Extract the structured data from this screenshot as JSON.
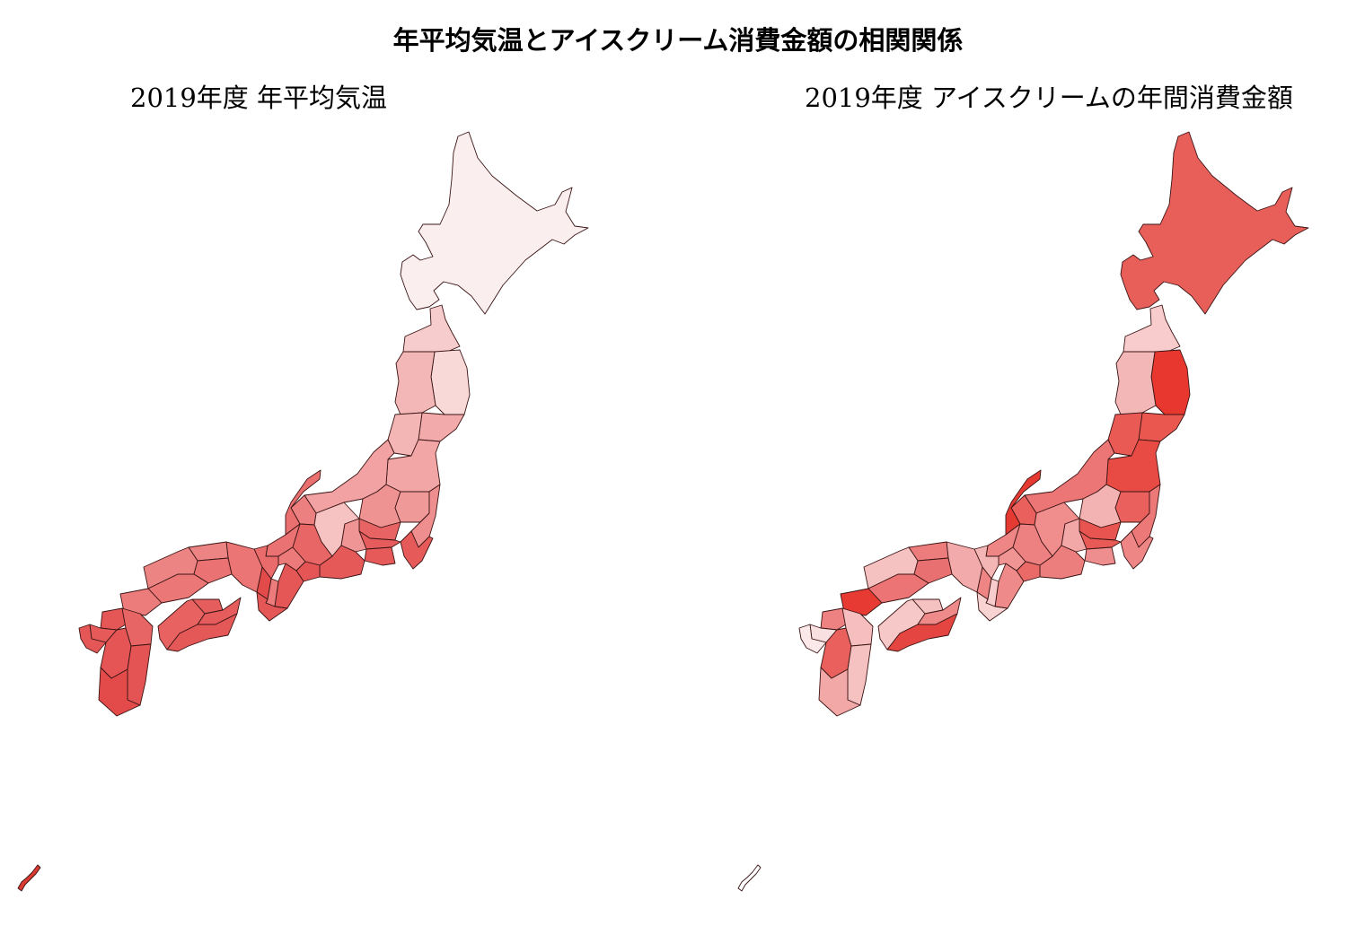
{
  "title": "年平均気温とアイスクリーム消費金額の相関関係",
  "maps": [
    {
      "id": "left",
      "subtitle": "2019年度 年平均気温",
      "regions": [
        {
          "name": "hokkaido",
          "color": "#fbeeee"
        },
        {
          "name": "aomori",
          "color": "#f7cccc"
        },
        {
          "name": "iwate",
          "color": "#f9d8d8"
        },
        {
          "name": "akita",
          "color": "#f4b7b7"
        },
        {
          "name": "miyagi",
          "color": "#f3aaaa"
        },
        {
          "name": "yamagata",
          "color": "#f4b5b5"
        },
        {
          "name": "fukushima",
          "color": "#f2a6a6"
        },
        {
          "name": "niigata",
          "color": "#f2a2a2"
        },
        {
          "name": "nagano",
          "color": "#f6c2c2"
        },
        {
          "name": "gunma",
          "color": "#ef9292"
        },
        {
          "name": "tochigi",
          "color": "#f09999"
        },
        {
          "name": "ibaraki",
          "color": "#ee8e8e"
        },
        {
          "name": "saitama",
          "color": "#e86464"
        },
        {
          "name": "chiba",
          "color": "#e65a5a"
        },
        {
          "name": "tokyo",
          "color": "#e65b5b"
        },
        {
          "name": "kanagawa",
          "color": "#e65a5a"
        },
        {
          "name": "yamanashi",
          "color": "#ef9595"
        },
        {
          "name": "shizuoka",
          "color": "#e65959"
        },
        {
          "name": "toyama",
          "color": "#ec7f7f"
        },
        {
          "name": "ishikawa",
          "color": "#ea7070"
        },
        {
          "name": "fukui",
          "color": "#ea7272"
        },
        {
          "name": "gifu",
          "color": "#e86666"
        },
        {
          "name": "aichi",
          "color": "#e55555"
        },
        {
          "name": "mie",
          "color": "#e55757"
        },
        {
          "name": "shiga",
          "color": "#ec7a7a"
        },
        {
          "name": "kyoto",
          "color": "#e96b6b"
        },
        {
          "name": "osaka",
          "color": "#e34a4a"
        },
        {
          "name": "hyogo",
          "color": "#eb7474"
        },
        {
          "name": "nara",
          "color": "#ec7c7c"
        },
        {
          "name": "wakayama",
          "color": "#e55656"
        },
        {
          "name": "tottori",
          "color": "#ed8484"
        },
        {
          "name": "shimane",
          "color": "#ed8484"
        },
        {
          "name": "okayama",
          "color": "#ea7272"
        },
        {
          "name": "hiroshima",
          "color": "#eb7777"
        },
        {
          "name": "yamaguchi",
          "color": "#ec7c7c"
        },
        {
          "name": "kagawa",
          "color": "#e65d5d"
        },
        {
          "name": "ehime",
          "color": "#e86262"
        },
        {
          "name": "tokushima",
          "color": "#e65c5c"
        },
        {
          "name": "kochi",
          "color": "#e55858"
        },
        {
          "name": "fukuoka",
          "color": "#e55757"
        },
        {
          "name": "saga",
          "color": "#e65a5a"
        },
        {
          "name": "nagasaki",
          "color": "#e55656"
        },
        {
          "name": "kumamoto",
          "color": "#e55555"
        },
        {
          "name": "oita",
          "color": "#e86565"
        },
        {
          "name": "miyazaki",
          "color": "#e55454"
        },
        {
          "name": "kagoshima",
          "color": "#e34b4b"
        },
        {
          "name": "okinawa",
          "color": "#d93a32"
        }
      ]
    },
    {
      "id": "right",
      "subtitle": "2019年度 アイスクリームの年間消費金額",
      "regions": [
        {
          "name": "hokkaido",
          "color": "#e85f5a"
        },
        {
          "name": "aomori",
          "color": "#f8cccc"
        },
        {
          "name": "iwate",
          "color": "#e8372f"
        },
        {
          "name": "akita",
          "color": "#f4b7b7"
        },
        {
          "name": "miyagi",
          "color": "#e9574f"
        },
        {
          "name": "yamagata",
          "color": "#ea5a55"
        },
        {
          "name": "fukushima",
          "color": "#e84a44"
        },
        {
          "name": "niigata",
          "color": "#ec7676"
        },
        {
          "name": "nagano",
          "color": "#f08d8d"
        },
        {
          "name": "gunma",
          "color": "#f4b3b3"
        },
        {
          "name": "tochigi",
          "color": "#e9605c"
        },
        {
          "name": "ibaraki",
          "color": "#ec7878"
        },
        {
          "name": "saitama",
          "color": "#e85550"
        },
        {
          "name": "chiba",
          "color": "#ee8686"
        },
        {
          "name": "tokyo",
          "color": "#e95a56"
        },
        {
          "name": "kanagawa",
          "color": "#ef8e8e"
        },
        {
          "name": "yamanashi",
          "color": "#f3a8a8"
        },
        {
          "name": "shizuoka",
          "color": "#ed7e7e"
        },
        {
          "name": "toyama",
          "color": "#e9605c"
        },
        {
          "name": "ishikawa",
          "color": "#e53a32"
        },
        {
          "name": "fukui",
          "color": "#ee8686"
        },
        {
          "name": "gifu",
          "color": "#ed8080"
        },
        {
          "name": "aichi",
          "color": "#ea6a68"
        },
        {
          "name": "mie",
          "color": "#ee8a8a"
        },
        {
          "name": "shiga",
          "color": "#f09494"
        },
        {
          "name": "kyoto",
          "color": "#f4b5b5"
        },
        {
          "name": "osaka",
          "color": "#ee8484"
        },
        {
          "name": "hyogo",
          "color": "#f3aaaa"
        },
        {
          "name": "nara",
          "color": "#f8cccc"
        },
        {
          "name": "wakayama",
          "color": "#f9d2d2"
        },
        {
          "name": "tottori",
          "color": "#ed7c7c"
        },
        {
          "name": "shimane",
          "color": "#f6c1c1"
        },
        {
          "name": "okayama",
          "color": "#e97070"
        },
        {
          "name": "hiroshima",
          "color": "#ec7474"
        },
        {
          "name": "yamaguchi",
          "color": "#e63a32"
        },
        {
          "name": "kagawa",
          "color": "#f6c1c1"
        },
        {
          "name": "ehime",
          "color": "#f7c8c8"
        },
        {
          "name": "tokushima",
          "color": "#ee8a8a"
        },
        {
          "name": "kochi",
          "color": "#e54540"
        },
        {
          "name": "fukuoka",
          "color": "#ee8282"
        },
        {
          "name": "saga",
          "color": "#f9e0e0"
        },
        {
          "name": "nagasaki",
          "color": "#fbe9e9"
        },
        {
          "name": "kumamoto",
          "color": "#e9605c"
        },
        {
          "name": "oita",
          "color": "#f6bebe"
        },
        {
          "name": "miyazaki",
          "color": "#f6c1c1"
        },
        {
          "name": "kagoshima",
          "color": "#f3a8a8"
        },
        {
          "name": "okinawa",
          "color": "#ffffff"
        }
      ]
    }
  ]
}
